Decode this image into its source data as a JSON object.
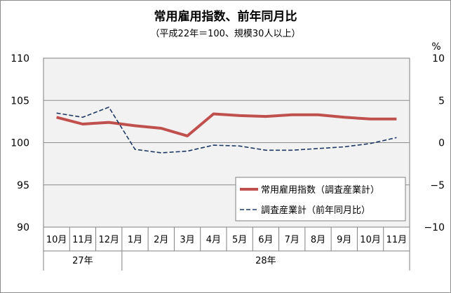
{
  "title": "常用雇用指数、前年同月比",
  "subtitle": "（平成22年＝100、規模30人以上）",
  "right_unit": "%",
  "chart_data": {
    "type": "line",
    "categories": [
      "10月",
      "11月",
      "12月",
      "1月",
      "2月",
      "3月",
      "4月",
      "5月",
      "6月",
      "7月",
      "8月",
      "9月",
      "10月",
      "11月"
    ],
    "year_groups": [
      {
        "label": "27年",
        "span": 3
      },
      {
        "label": "28年",
        "span": 11
      }
    ],
    "left_axis": {
      "ylim": [
        90,
        110
      ],
      "ticks": [
        "90",
        "95",
        "100",
        "105",
        "110"
      ]
    },
    "right_axis": {
      "ylim": [
        -10,
        10
      ],
      "ticks": [
        "−10",
        "−5",
        "0",
        "5",
        "10"
      ]
    },
    "series": [
      {
        "name": "常用雇用指数（調査産業計）",
        "axis": "left",
        "color": "#c0504d",
        "style": "solid",
        "values": [
          103.0,
          102.2,
          102.4,
          102.0,
          101.7,
          100.8,
          103.4,
          103.2,
          103.1,
          103.3,
          103.3,
          103.0,
          102.8,
          102.8
        ]
      },
      {
        "name": "調査産業計（前年同月比）",
        "axis": "right",
        "color": "#1f3864",
        "style": "dashed",
        "values": [
          3.5,
          3.0,
          4.2,
          -0.8,
          -1.2,
          -1.0,
          -0.3,
          -0.4,
          -0.9,
          -0.9,
          -0.7,
          -0.5,
          -0.1,
          0.6
        ]
      }
    ],
    "grid": true,
    "legend_position": "bottom-right"
  }
}
